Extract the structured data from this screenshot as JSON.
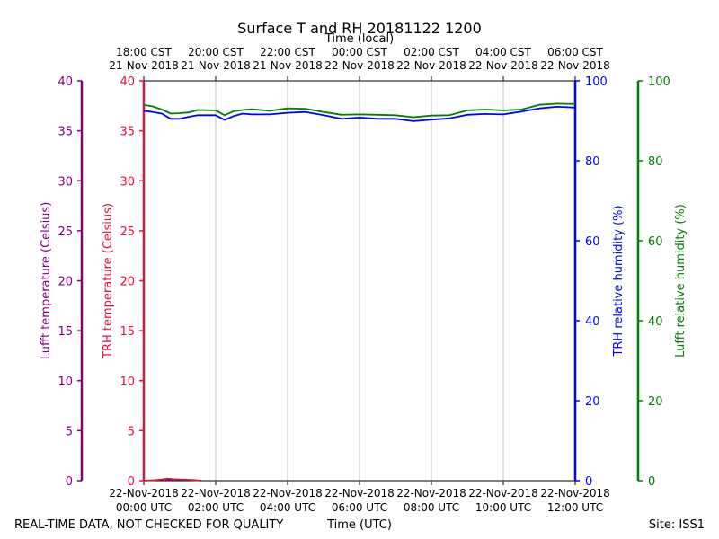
{
  "chart_data": {
    "type": "line",
    "title": "Surface T and RH 20181122 1200",
    "top_axis_label": "Time (local)",
    "bottom_axis_label": "Time (UTC)",
    "footer_left": "REAL-TIME DATA, NOT CHECKED FOR QUALITY",
    "footer_right": "Site: ISS1",
    "x_range_hours": [
      0,
      12
    ],
    "bottom_ticks": [
      {
        "hour": 0,
        "date": "22-Nov-2018",
        "time": "00:00 UTC"
      },
      {
        "hour": 2,
        "date": "22-Nov-2018",
        "time": "02:00 UTC"
      },
      {
        "hour": 4,
        "date": "22-Nov-2018",
        "time": "04:00 UTC"
      },
      {
        "hour": 6,
        "date": "22-Nov-2018",
        "time": "06:00 UTC"
      },
      {
        "hour": 8,
        "date": "22-Nov-2018",
        "time": "08:00 UTC"
      },
      {
        "hour": 10,
        "date": "22-Nov-2018",
        "time": "10:00 UTC"
      },
      {
        "hour": 12,
        "date": "22-Nov-2018",
        "time": "12:00 UTC"
      }
    ],
    "top_ticks": [
      {
        "hour": 0,
        "time": "18:00 CST",
        "date": "21-Nov-2018"
      },
      {
        "hour": 2,
        "time": "20:00 CST",
        "date": "21-Nov-2018"
      },
      {
        "hour": 4,
        "time": "22:00 CST",
        "date": "21-Nov-2018"
      },
      {
        "hour": 6,
        "time": "00:00 CST",
        "date": "22-Nov-2018"
      },
      {
        "hour": 8,
        "time": "02:00 CST",
        "date": "22-Nov-2018"
      },
      {
        "hour": 10,
        "time": "04:00 CST",
        "date": "22-Nov-2018"
      },
      {
        "hour": 12,
        "time": "06:00 CST",
        "date": "22-Nov-2018"
      }
    ],
    "axes": {
      "lufft_temp": {
        "label": "Lufft temperature (Celsius)",
        "ylim": [
          0,
          40
        ],
        "ticks": [
          0,
          5,
          10,
          15,
          20,
          25,
          30,
          35,
          40
        ],
        "color": "#800080"
      },
      "trh_temp": {
        "label": "TRH temperature (Celsius)",
        "ylim": [
          0,
          40
        ],
        "ticks": [
          0,
          5,
          10,
          15,
          20,
          25,
          30,
          35,
          40
        ],
        "color": "#dc143c"
      },
      "trh_rh": {
        "label": "TRH relative humidity (%)",
        "ylim": [
          0,
          100
        ],
        "ticks": [
          0,
          20,
          40,
          60,
          80,
          100
        ],
        "color": "#0000ff"
      },
      "lufft_rh": {
        "label": "Lufft relative humidity (%)",
        "ylim": [
          0,
          100
        ],
        "ticks": [
          0,
          20,
          40,
          60,
          80,
          100
        ],
        "color": "#008000"
      }
    },
    "series": [
      {
        "name": "Lufft relative humidity",
        "axis": "lufft_rh",
        "color": "#008000",
        "x": [
          0,
          0.25,
          0.5,
          0.75,
          1.0,
          1.25,
          1.5,
          2.0,
          2.25,
          2.5,
          2.75,
          3.0,
          3.5,
          4.0,
          4.5,
          5.0,
          5.5,
          6.0,
          6.5,
          7.0,
          7.5,
          8.0,
          8.5,
          9.0,
          9.5,
          10.0,
          10.5,
          11.0,
          11.5,
          12.0
        ],
        "values": [
          94.0,
          93.6,
          92.8,
          91.8,
          91.9,
          92.1,
          92.7,
          92.6,
          91.4,
          92.4,
          92.7,
          92.9,
          92.5,
          93.1,
          93.0,
          92.2,
          91.5,
          91.6,
          91.5,
          91.4,
          90.9,
          91.3,
          91.4,
          92.6,
          92.8,
          92.6,
          92.8,
          94.0,
          94.3,
          94.2
        ]
      },
      {
        "name": "TRH relative humidity",
        "axis": "trh_rh",
        "color": "#0000ff",
        "x": [
          0,
          0.25,
          0.5,
          0.75,
          1.0,
          1.25,
          1.5,
          2.0,
          2.25,
          2.5,
          2.75,
          3.0,
          3.5,
          4.0,
          4.5,
          5.0,
          5.5,
          6.0,
          6.5,
          7.0,
          7.5,
          8.0,
          8.5,
          9.0,
          9.5,
          10.0,
          10.5,
          11.0,
          11.5,
          12.0
        ],
        "values": [
          92.5,
          92.2,
          91.8,
          90.5,
          90.5,
          91.0,
          91.4,
          91.4,
          90.2,
          91.2,
          91.8,
          91.6,
          91.6,
          92.0,
          92.2,
          91.4,
          90.5,
          90.8,
          90.5,
          90.5,
          89.9,
          90.3,
          90.6,
          91.5,
          91.7,
          91.6,
          92.3,
          93.1,
          93.5,
          93.3
        ]
      },
      {
        "name": "TRH temperature",
        "axis": "trh_temp",
        "color": "#dc143c",
        "x": [
          0,
          0.3,
          0.5,
          0.65,
          0.8,
          1.0,
          1.2,
          1.4,
          1.6
        ],
        "values": [
          0.0,
          0.05,
          0.12,
          0.2,
          0.15,
          0.12,
          0.1,
          0.06,
          0.0
        ]
      },
      {
        "name": "Lufft temperature",
        "axis": "lufft_temp",
        "color": "#800080",
        "x": [
          0.6,
          0.7,
          0.8
        ],
        "values": [
          0.0,
          0.1,
          0.0
        ]
      }
    ]
  }
}
